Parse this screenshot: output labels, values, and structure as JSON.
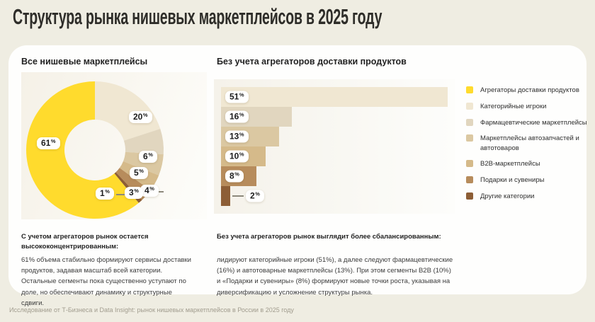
{
  "title": "Структура рынка нишевых маркетплейсов в 2025 году",
  "sections": {
    "donut": {
      "title": "Все нишевые маркетплейсы",
      "note_title": "С учетом агрегаторов рынок остается высококонцентрированным:",
      "note_body": "61% объема стабильно формируют сервисы доставки продуктов, задавая масштаб всей категории. Остальные сегменты пока существенно уступают по доле, но обеспечивают динамику и структурные сдвиги."
    },
    "bars": {
      "title": "Без учета агрегаторов доставки продуктов",
      "note_title": "Без учета агрегаторов рынок выглядит более сбалансированным:",
      "note_body": "лидируют категорийные игроки (51%), а далее следуют фармацевтические (16%) и автотоварные маркетплейсы (13%). При этом сегменты B2B (10%) и «Подарки и сувениры» (8%) формируют новые точки роста, указывая на диверсификацию и усложнение структуры рынка."
    }
  },
  "legend": [
    {
      "label": "Агрегаторы доставки продуктов",
      "color": "#FFDB2D"
    },
    {
      "label": "Категорийные игроки",
      "color": "#F0E7D2"
    },
    {
      "label": "Фармацевтические маркетплейсы",
      "color": "#E1D6BF"
    },
    {
      "label": "Маркетплейсы автозапчастей и автотоваров",
      "color": "#DBC8A2"
    },
    {
      "label": "B2B-маркетплейсы",
      "color": "#D5BA8A"
    },
    {
      "label": "Подарки и сувениры",
      "color": "#B78C5C"
    },
    {
      "label": "Другие категории",
      "color": "#8D5E36"
    }
  ],
  "chart_data": [
    {
      "type": "pie",
      "donut": true,
      "title": "Все нишевые маркетплейсы",
      "unit": "%",
      "categories": [
        "Агрегаторы доставки продуктов",
        "Категорийные игроки",
        "Фармацевтические маркетплейсы",
        "Маркетплейсы автозапчастей и автотоваров",
        "B2B-маркетплейсы",
        "Подарки и сувениры",
        "Другие категории"
      ],
      "values": [
        61,
        20,
        6,
        5,
        4,
        3,
        1
      ],
      "colors": [
        "#FFDB2D",
        "#F0E7D2",
        "#E1D6BF",
        "#DBC8A2",
        "#D5BA8A",
        "#B78C5C",
        "#8D5E36"
      ],
      "legend_position": "right"
    },
    {
      "type": "bar",
      "orientation": "horizontal",
      "title": "Без учета агрегаторов доставки продуктов",
      "unit": "%",
      "categories": [
        "Категорийные игроки",
        "Фармацевтические маркетплейсы",
        "Маркетплейсы автозапчастей и автотоваров",
        "B2B-маркетплейсы",
        "Подарки и сувениры",
        "Другие категории"
      ],
      "values": [
        51,
        16,
        13,
        10,
        8,
        2
      ],
      "colors": [
        "#F0E7D2",
        "#E1D6BF",
        "#DBC8A2",
        "#D5BA8A",
        "#B78C5C",
        "#8D5E36"
      ],
      "xlim": [
        0,
        51
      ],
      "grid": false
    }
  ],
  "footer": "Исследование от Т-Бизнеса и Data Insight: рынок нишевых маркетплейсов в России в 2025 году"
}
